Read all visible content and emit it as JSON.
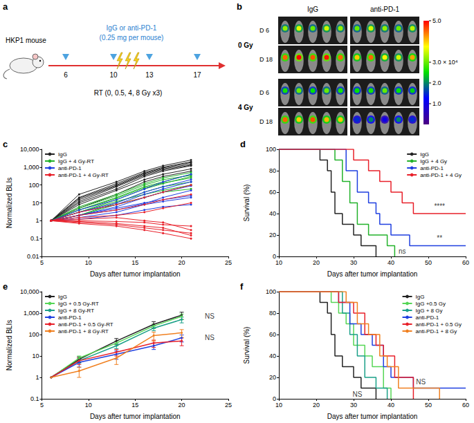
{
  "schematic": {
    "panel": "a",
    "subject": "HKP1 mouse",
    "treatment": "IgG or anti-PD-1",
    "dose": "(0.25 mg per mouse)",
    "days": [
      6,
      10,
      13,
      17
    ],
    "radiation": "RT (0, 0.5, 4, 8 Gy x3)"
  },
  "imaging": {
    "panel": "b",
    "columns": [
      "IgG",
      "anti-PD-1"
    ],
    "groups": [
      {
        "label": "0 Gy",
        "rows": [
          {
            "day": "D 6",
            "signals": [
              [
                3.2,
                3.6,
                3.0,
                3.5,
                3.2
              ],
              [
                3.0,
                3.5,
                3.2,
                3.0,
                3.4
              ]
            ]
          },
          {
            "day": "D 18",
            "signals": [
              [
                4.5,
                5.0,
                4.6,
                4.9,
                4.5
              ],
              [
                4.0,
                4.5,
                3.8,
                3.5,
                4.2
              ]
            ]
          }
        ]
      },
      {
        "label": "4 Gy",
        "rows": [
          {
            "day": "D 6",
            "signals": [
              [
                2.6,
                3.0,
                2.5,
                3.0,
                2.6
              ],
              [
                2.5,
                2.6,
                3.0,
                2.5,
                2.4
              ]
            ]
          },
          {
            "day": "D 18",
            "signals": [
              [
                4.5,
                4.0,
                4.6,
                4.1,
                4.0
              ],
              [
                1.5,
                2.0,
                1.0,
                2.0,
                1.5
              ]
            ]
          }
        ]
      }
    ],
    "colorbar": {
      "range": [
        0,
        5
      ],
      "ticks": [
        {
          "value": 5,
          "label": "5.0"
        },
        {
          "value": 3,
          "label": "3.0 × 10⁴"
        },
        {
          "value": 2,
          "label": "2.0"
        },
        {
          "value": 1,
          "label": "1.0"
        }
      ]
    }
  },
  "chart_data": [
    {
      "panel": "c",
      "type": "line",
      "xlabel": "Days after tumor implantation",
      "ylabel": "Normalized BLIs",
      "x": [
        6,
        9,
        13,
        16,
        18,
        21
      ],
      "xlim": [
        5,
        25
      ],
      "xticks": [
        5,
        10,
        15,
        20,
        25
      ],
      "ylim": [
        0.01,
        10000
      ],
      "yticks": [
        0.01,
        0.1,
        1,
        10,
        100,
        {
          "value": 1000,
          "label": "1,000"
        },
        {
          "value": 10000,
          "label": "10,000"
        }
      ],
      "log": "y",
      "grid": false,
      "legend": "upper left",
      "marker": "circle",
      "series": [
        {
          "name": "IgG",
          "color": "#222222",
          "values": [
            [
              1,
              20,
              120,
              500,
              1000,
              2000
            ],
            [
              1,
              15,
              90,
              400,
              800,
              1500
            ],
            [
              1,
              30,
              150,
              600,
              1200,
              2500
            ],
            [
              1,
              10,
              60,
              300,
              600,
              1200
            ],
            [
              1,
              8,
              50,
              200,
              400,
              800
            ],
            [
              1,
              12,
              80,
              350,
              700,
              1300
            ],
            [
              1,
              5,
              30,
              150,
              300,
              600
            ],
            [
              1,
              18,
              100,
              450,
              900,
              1800
            ]
          ]
        },
        {
          "name": "IgG + 4 Gy-RT",
          "color": "#22b22a",
          "values": [
            [
              1,
              4,
              20,
              80,
              150,
              400
            ],
            [
              1,
              3,
              15,
              60,
              120,
              300
            ],
            [
              1,
              6,
              30,
              120,
              250,
              500
            ],
            [
              1,
              2,
              10,
              40,
              80,
              150
            ],
            [
              1,
              3,
              12,
              30,
              50,
              100
            ],
            [
              1,
              5,
              25,
              100,
              200,
              350
            ],
            [
              1,
              2,
              8,
              20,
              40,
              60
            ],
            [
              1,
              4,
              18,
              70,
              130,
              250
            ]
          ]
        },
        {
          "name": "anti-PD-1",
          "color": "#1f3fe0",
          "values": [
            [
              1,
              3,
              10,
              40,
              80,
              200
            ],
            [
              1,
              2,
              6,
              20,
              40,
              90
            ],
            [
              1,
              4,
              15,
              60,
              150,
              400
            ],
            [
              1,
              1.5,
              3,
              8,
              12,
              20
            ],
            [
              1,
              2,
              5,
              10,
              15,
              25
            ],
            [
              1,
              1.2,
              2,
              4,
              6,
              8
            ],
            [
              1,
              3,
              8,
              30,
              60,
              150
            ],
            [
              1,
              2,
              4,
              9,
              20,
              50
            ]
          ]
        },
        {
          "name": "anti-PD-1 + 4 Gy-RT",
          "color": "#e8202a",
          "values": [
            [
              1,
              0.8,
              0.6,
              0.4,
              0.3,
              0.2
            ],
            [
              1,
              0.7,
              0.5,
              0.3,
              0.2,
              0.1
            ],
            [
              1,
              1,
              0.9,
              0.8,
              0.6,
              0.5
            ],
            [
              1,
              1.5,
              2,
              3,
              5,
              10
            ],
            [
              1,
              2,
              4,
              8,
              15,
              30
            ],
            [
              1,
              1.2,
              1.5,
              1,
              0.8,
              0.3
            ],
            [
              1,
              3,
              8,
              20,
              40,
              100
            ],
            [
              1,
              0.9,
              0.7,
              0.5,
              0.4,
              0.15
            ]
          ]
        }
      ]
    },
    {
      "panel": "d",
      "type": "line",
      "line_style": "step",
      "xlabel": "Days after tumor implantation",
      "ylabel": "Survival (%)",
      "xlim": [
        10,
        60
      ],
      "xticks": [
        10,
        20,
        30,
        40,
        50,
        60
      ],
      "ylim": [
        0,
        100
      ],
      "yticks": [
        0,
        20,
        40,
        60,
        80,
        100
      ],
      "grid": false,
      "legend": "upper right",
      "series": [
        {
          "name": "IgG",
          "color": "#222222",
          "x": [
            10,
            21,
            23,
            24,
            25,
            27,
            30,
            32,
            36
          ],
          "values": [
            100,
            90,
            80,
            60,
            40,
            30,
            20,
            10,
            0
          ]
        },
        {
          "name": "IgG + 4 Gy",
          "color": "#22b22a",
          "x": [
            10,
            25,
            27,
            29,
            31,
            34,
            39,
            41
          ],
          "values": [
            100,
            90,
            70,
            50,
            30,
            20,
            10,
            0
          ]
        },
        {
          "name": "anti-PD-1",
          "color": "#1f3fe0",
          "x": [
            10,
            28,
            31,
            34,
            36,
            37,
            40,
            45,
            60
          ],
          "values": [
            100,
            80,
            60,
            50,
            40,
            30,
            20,
            10,
            10
          ]
        },
        {
          "name": "anti-PD-1 + 4 Gy",
          "color": "#e8202a",
          "x": [
            10,
            30,
            34,
            37,
            40,
            43,
            46,
            50,
            60
          ],
          "values": [
            100,
            90,
            80,
            70,
            60,
            50,
            40,
            40,
            40
          ]
        }
      ],
      "annotations": [
        {
          "text": "****",
          "x": 53,
          "y": 47
        },
        {
          "text": "**",
          "x": 53,
          "y": 17
        },
        {
          "text": "ns",
          "x": 43,
          "y": 5
        }
      ]
    },
    {
      "panel": "e",
      "type": "line",
      "xlabel": "Days after tumor implantation",
      "ylabel": "Normalized BLIs",
      "x": [
        6,
        9,
        13,
        17,
        20
      ],
      "xlim": [
        5,
        25
      ],
      "xticks": [
        5,
        10,
        15,
        20,
        25
      ],
      "ylim": [
        0.1,
        10000
      ],
      "yticks": [
        0.1,
        1,
        10,
        100,
        {
          "value": 1000,
          "label": "1,000"
        },
        {
          "value": 10000,
          "label": "10,000"
        }
      ],
      "log": "y",
      "grid": false,
      "legend": "upper left",
      "marker": "circle",
      "series": [
        {
          "name": "IgG",
          "color": "#222222",
          "values": [
            1,
            7,
            50,
            300,
            800
          ],
          "errors": [
            0,
            2,
            15,
            100,
            300
          ]
        },
        {
          "name": "IgG + 0.5 Gy-RT",
          "color": "#55d655",
          "values": [
            1,
            8,
            40,
            250,
            700
          ],
          "errors": [
            0,
            2,
            10,
            60,
            200
          ]
        },
        {
          "name": "IgG + 8 Gy-RT",
          "color": "#1aa088",
          "values": [
            1,
            6,
            30,
            200,
            500
          ],
          "errors": [
            0,
            1.5,
            8,
            50,
            150
          ]
        },
        {
          "name": "anti-PD-1",
          "color": "#1f3fe0",
          "values": [
            1,
            5,
            12,
            30,
            70
          ],
          "errors": [
            0,
            2,
            5,
            10,
            25
          ]
        },
        {
          "name": "anti-PD-1 + 0.5 Gy-RT",
          "color": "#e8202a",
          "values": [
            1,
            6,
            15,
            40,
            50
          ],
          "errors": [
            0,
            2,
            5,
            15,
            20
          ]
        },
        {
          "name": "anti-PD-1 + 8 Gy-RT",
          "color": "#f08020",
          "values": [
            1,
            2,
            8,
            90,
            120
          ],
          "errors": [
            0,
            1,
            4,
            40,
            50
          ]
        }
      ],
      "annotations": [
        {
          "text": "NS",
          "x": 23,
          "y": 700
        },
        {
          "text": "NS",
          "x": 23,
          "y": 70
        }
      ]
    },
    {
      "panel": "f",
      "type": "line",
      "line_style": "step",
      "xlabel": "Days after tumor implantation",
      "ylabel": "Survival (%)",
      "xlim": [
        10,
        60
      ],
      "xticks": [
        10,
        20,
        30,
        40,
        50,
        60
      ],
      "ylim": [
        0,
        100
      ],
      "yticks": [
        0,
        20,
        40,
        60,
        80,
        100
      ],
      "grid": false,
      "legend": "upper right",
      "series": [
        {
          "name": "IgG",
          "color": "#222222",
          "x": [
            10,
            21,
            23,
            24,
            25,
            27,
            30,
            32,
            36
          ],
          "values": [
            100,
            90,
            80,
            60,
            40,
            30,
            20,
            10,
            0
          ]
        },
        {
          "name": "IgG +0.5 Gy",
          "color": "#55d655",
          "x": [
            10,
            24,
            26,
            28,
            30,
            33,
            35,
            38,
            40
          ],
          "values": [
            100,
            90,
            80,
            70,
            50,
            40,
            30,
            10,
            0
          ]
        },
        {
          "name": "IgG + 8 Gy",
          "color": "#1aa088",
          "x": [
            10,
            27,
            29,
            31,
            33,
            36,
            39
          ],
          "values": [
            100,
            80,
            60,
            40,
            20,
            10,
            0
          ]
        },
        {
          "name": "anti-PD-1",
          "color": "#1f3fe0",
          "x": [
            10,
            26,
            29,
            32,
            35,
            38,
            40,
            46,
            60
          ],
          "values": [
            100,
            90,
            70,
            60,
            50,
            30,
            20,
            10,
            10
          ]
        },
        {
          "name": "anti-PD-1 + 0.5 Gy",
          "color": "#e8202a",
          "x": [
            10,
            26,
            30,
            33,
            36,
            38,
            41,
            46
          ],
          "values": [
            100,
            90,
            80,
            60,
            50,
            40,
            20,
            0
          ]
        },
        {
          "name": "anti-PD-1 + 8 Gy",
          "color": "#f08020",
          "x": [
            10,
            28,
            31,
            34,
            37,
            39,
            42,
            53
          ],
          "values": [
            100,
            90,
            70,
            60,
            40,
            30,
            10,
            0
          ]
        }
      ],
      "annotations": [
        {
          "text": "NS",
          "x": 48,
          "y": 16
        },
        {
          "text": "NS",
          "x": 31,
          "y": 4
        }
      ]
    }
  ]
}
